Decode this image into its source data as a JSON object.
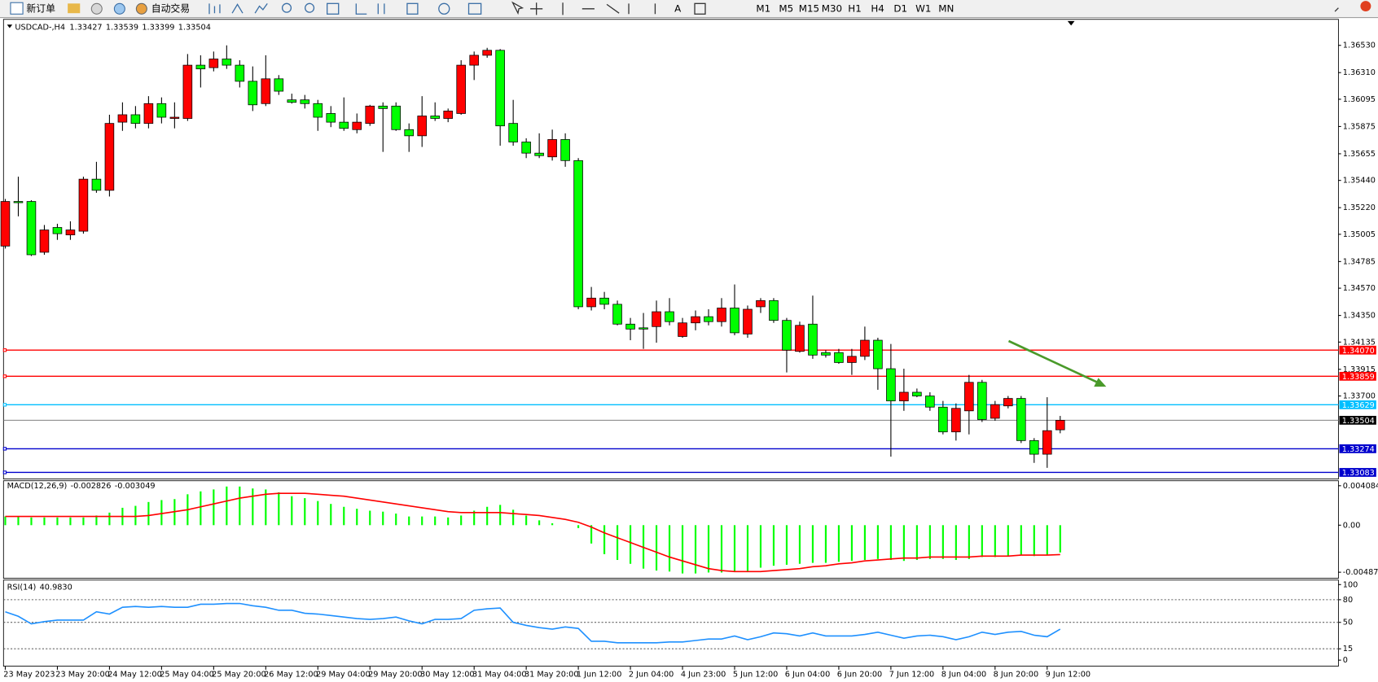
{
  "toolbar": {
    "new_order": "新订单",
    "auto_trading": "自动交易",
    "timeframes": [
      "M1",
      "M5",
      "M15",
      "M30",
      "H1",
      "H4",
      "D1",
      "W1",
      "MN"
    ]
  },
  "chart_data": [
    {
      "type": "candlestick",
      "title": "USDCAD-,H4",
      "categories": [
        "23 May 2023",
        null,
        null,
        null,
        "23 May 20:00",
        null,
        null,
        null,
        "24 May 12:00",
        null,
        null,
        null,
        "25 May 04:00",
        null,
        null,
        null,
        "25 May 20:00",
        null,
        null,
        null,
        "26 May 12:00",
        null,
        null,
        null,
        "29 May 04:00",
        null,
        null,
        null,
        "29 May 20:00",
        null,
        null,
        null,
        "30 May 12:00",
        null,
        null,
        null,
        "31 May 04:00",
        null,
        null,
        null,
        "31 May 20:00",
        null,
        null,
        null,
        "1 Jun 12:00",
        null,
        null,
        null,
        "2 Jun 04:00",
        null,
        null,
        null,
        "4 Jun 23:00",
        null,
        null,
        null,
        "5 Jun 12:00",
        null,
        null,
        null,
        "6 Jun 04:00",
        null,
        null,
        null,
        "6 Jun 20:00",
        null,
        null,
        null,
        "7 Jun 12:00",
        null,
        null,
        null,
        "8 Jun 04:00",
        null,
        null,
        null,
        "8 Jun 20:00",
        null,
        null,
        null,
        "9 Jun 12:00",
        null
      ],
      "candles": [
        [
          1.3491,
          1.3529,
          1.3489,
          1.3527
        ],
        [
          1.3527,
          1.3547,
          1.3515,
          1.3526
        ],
        [
          1.3527,
          1.3528,
          1.3483,
          1.3484
        ],
        [
          1.3486,
          1.3508,
          1.3484,
          1.3504
        ],
        [
          1.3506,
          1.3509,
          1.3496,
          1.3501
        ],
        [
          1.35,
          1.3511,
          1.3496,
          1.3504
        ],
        [
          1.3503,
          1.3547,
          1.3501,
          1.3545
        ],
        [
          1.3545,
          1.3559,
          1.3534,
          1.3536
        ],
        [
          1.3536,
          1.3597,
          1.3531,
          1.359
        ],
        [
          1.3591,
          1.3607,
          1.3584,
          1.3597
        ],
        [
          1.3597,
          1.3604,
          1.3586,
          1.359
        ],
        [
          1.359,
          1.3612,
          1.3586,
          1.3606
        ],
        [
          1.3606,
          1.3611,
          1.359,
          1.3595
        ],
        [
          1.3594,
          1.3607,
          1.3586,
          1.3595
        ],
        [
          1.3594,
          1.3646,
          1.3592,
          1.3637
        ],
        [
          1.3637,
          1.3645,
          1.3619,
          1.3634
        ],
        [
          1.3635,
          1.3648,
          1.3632,
          1.3642
        ],
        [
          1.3642,
          1.3653,
          1.3634,
          1.3637
        ],
        [
          1.3637,
          1.3641,
          1.3619,
          1.3624
        ],
        [
          1.3624,
          1.3636,
          1.36,
          1.3605
        ],
        [
          1.3606,
          1.3645,
          1.3604,
          1.3626
        ],
        [
          1.3626,
          1.3629,
          1.3613,
          1.3616
        ],
        [
          1.3609,
          1.3614,
          1.3606,
          1.3607
        ],
        [
          1.3609,
          1.3613,
          1.3602,
          1.3606
        ],
        [
          1.3606,
          1.3609,
          1.3584,
          1.3595
        ],
        [
          1.3598,
          1.3604,
          1.3587,
          1.3591
        ],
        [
          1.3591,
          1.3611,
          1.3584,
          1.3586
        ],
        [
          1.3585,
          1.3598,
          1.3582,
          1.3591
        ],
        [
          1.359,
          1.3605,
          1.3588,
          1.3604
        ],
        [
          1.3604,
          1.3607,
          1.3567,
          1.3602
        ],
        [
          1.3604,
          1.3607,
          1.3584,
          1.3585
        ],
        [
          1.3585,
          1.359,
          1.3567,
          1.358
        ],
        [
          1.358,
          1.3612,
          1.3571,
          1.3596
        ],
        [
          1.3596,
          1.3607,
          1.3592,
          1.3594
        ],
        [
          1.3594,
          1.3602,
          1.3591,
          1.36
        ],
        [
          1.3598,
          1.3641,
          1.3597,
          1.3637
        ],
        [
          1.3637,
          1.3648,
          1.3625,
          1.3645
        ],
        [
          1.3645,
          1.3651,
          1.3643,
          1.3649
        ],
        [
          1.3649,
          1.365,
          1.3572,
          1.3588
        ],
        [
          1.359,
          1.3609,
          1.3572,
          1.3575
        ],
        [
          1.3575,
          1.3578,
          1.3562,
          1.3566
        ],
        [
          1.3566,
          1.3582,
          1.3562,
          1.3564
        ],
        [
          1.3563,
          1.3585,
          1.356,
          1.3577
        ],
        [
          1.3577,
          1.3582,
          1.3555,
          1.356
        ],
        [
          1.356,
          1.3562,
          1.344,
          1.3442
        ],
        [
          1.3442,
          1.3458,
          1.3439,
          1.3449
        ],
        [
          1.3449,
          1.3454,
          1.344,
          1.3444
        ],
        [
          1.3444,
          1.3447,
          1.3427,
          1.3428
        ],
        [
          1.3428,
          1.3433,
          1.3415,
          1.3424
        ],
        [
          1.3425,
          1.3437,
          1.3408,
          1.3424
        ],
        [
          1.3426,
          1.3447,
          1.3413,
          1.3438
        ],
        [
          1.3438,
          1.3449,
          1.3427,
          1.343
        ],
        [
          1.3418,
          1.3433,
          1.3417,
          1.3429
        ],
        [
          1.3429,
          1.3439,
          1.3423,
          1.3434
        ],
        [
          1.3434,
          1.344,
          1.3427,
          1.343
        ],
        [
          1.343,
          1.3449,
          1.3426,
          1.3441
        ],
        [
          1.3441,
          1.346,
          1.3419,
          1.3421
        ],
        [
          1.342,
          1.3443,
          1.3417,
          1.344
        ],
        [
          1.3442,
          1.3449,
          1.3437,
          1.3447
        ],
        [
          1.3447,
          1.3449,
          1.3429,
          1.3431
        ],
        [
          1.3431,
          1.3433,
          1.3389,
          1.3407
        ],
        [
          1.3406,
          1.343,
          1.3405,
          1.3427
        ],
        [
          1.3428,
          1.3451,
          1.34,
          1.3403
        ],
        [
          1.3405,
          1.3407,
          1.3401,
          1.3403
        ],
        [
          1.3405,
          1.3408,
          1.3396,
          1.3397
        ],
        [
          1.3397,
          1.3408,
          1.3387,
          1.3402
        ],
        [
          1.3402,
          1.3426,
          1.3399,
          1.3415
        ],
        [
          1.3415,
          1.3417,
          1.3375,
          1.3392
        ],
        [
          1.3392,
          1.3412,
          1.3321,
          1.3366
        ],
        [
          1.3366,
          1.3392,
          1.3358,
          1.3373
        ],
        [
          1.3373,
          1.3376,
          1.3369,
          1.337
        ],
        [
          1.337,
          1.3373,
          1.3358,
          1.3361
        ],
        [
          1.3361,
          1.3366,
          1.3339,
          1.3341
        ],
        [
          1.3341,
          1.3364,
          1.3334,
          1.336
        ],
        [
          1.3358,
          1.3387,
          1.3339,
          1.3381
        ],
        [
          1.3381,
          1.3383,
          1.3349,
          1.3351
        ],
        [
          1.3352,
          1.3366,
          1.335,
          1.3363
        ],
        [
          1.3362,
          1.337,
          1.336,
          1.3368
        ],
        [
          1.3368,
          1.337,
          1.3332,
          1.3334
        ],
        [
          1.3334,
          1.3336,
          1.3316,
          1.3323
        ],
        [
          1.3323,
          1.3369,
          1.3312,
          1.3342
        ],
        [
          1.33427,
          1.33539,
          1.33399,
          1.33504
        ]
      ],
      "up_color": "#ff0000",
      "down_color": "#00ff00",
      "ylim": [
        1.3303,
        1.3674
      ],
      "yticks": [
        {
          "value": 1.3653,
          "label": "1.36530"
        },
        {
          "value": 1.3631,
          "label": "1.36310"
        },
        1.36095,
        1.35875,
        1.35655,
        {
          "value": 1.3544,
          "label": "1.35440"
        },
        {
          "value": 1.3522,
          "label": "1.35220"
        },
        1.35005,
        1.34785,
        {
          "value": 1.3457,
          "label": "1.34570"
        },
        {
          "value": 1.3435,
          "label": "1.34350"
        },
        1.34135,
        1.33915,
        {
          "value": 1.337,
          "label": "1.33700"
        }
      ],
      "levels": [
        {
          "value": 1.3407,
          "label": "1.34070",
          "color": "#ff0000"
        },
        {
          "value": 1.33859,
          "color": "#ff0000"
        },
        {
          "value": 1.33629,
          "color": "#00bfff"
        },
        {
          "value": 1.33274,
          "color": "#0000cd"
        },
        {
          "value": 1.33083,
          "color": "#0000cd"
        }
      ]
    },
    {
      "type": "macd",
      "title": "MACD(12,26,9)",
      "series": [
        {
          "style": "histogram",
          "color": "#00ff00",
          "values": [
            0.0009,
            0.0009,
            0.0008,
            0.0008,
            0.0008,
            0.0008,
            0.0008,
            0.001,
            0.0013,
            0.0018,
            0.002,
            0.0024,
            0.0026,
            0.0027,
            0.0032,
            0.0035,
            0.0037,
            0.004,
            0.004,
            0.0038,
            0.0037,
            0.0034,
            0.003,
            0.0028,
            0.0025,
            0.0022,
            0.0019,
            0.0017,
            0.0015,
            0.0014,
            0.0012,
            0.0009,
            0.0009,
            0.0009,
            0.0008,
            0.001,
            0.0015,
            0.0019,
            0.0021,
            0.0016,
            0.001,
            0.0005,
            0.0002,
            0,
            -0.0003,
            -0.0019,
            -0.003,
            -0.0036,
            -0.004,
            -0.0045,
            -0.0047,
            -0.0048,
            -0.005,
            -0.005,
            -0.0049,
            -0.0049,
            -0.0048,
            -0.0048,
            -0.0044,
            -0.0042,
            -0.0041,
            -0.004,
            -0.0039,
            -0.0039,
            -0.0038,
            -0.0037,
            -0.0036,
            -0.0035,
            -0.0036,
            -0.0037,
            -0.0036,
            -0.0035,
            -0.0035,
            -0.0036,
            -0.0035,
            -0.0033,
            -0.0033,
            -0.0032,
            -0.0031,
            -0.0032,
            -0.0031,
            -0.002826
          ]
        },
        {
          "color": "#ff0000",
          "values": [
            0.0009,
            0.0009,
            0.0009,
            0.0009,
            0.0009,
            0.0009,
            0.0009,
            0.0009,
            0.0009,
            0.0009,
            0.0009,
            0.001,
            0.0012,
            0.0014,
            0.0016,
            0.0019,
            0.0022,
            0.0025,
            0.0028,
            0.003,
            0.0032,
            0.0033,
            0.0033,
            0.0033,
            0.0032,
            0.0031,
            0.003,
            0.0028,
            0.0026,
            0.0024,
            0.0022,
            0.002,
            0.0018,
            0.0016,
            0.0014,
            0.0013,
            0.0013,
            0.0013,
            0.0013,
            0.0012,
            0.0011,
            0.001,
            0.0008,
            0.0006,
            0.0003,
            -0.0002,
            -0.0008,
            -0.0013,
            -0.0018,
            -0.0023,
            -0.0028,
            -0.0033,
            -0.0037,
            -0.0041,
            -0.0045,
            -0.0047,
            -0.0048,
            -0.0048,
            -0.0048,
            -0.0047,
            -0.0046,
            -0.0045,
            -0.0043,
            -0.0042,
            -0.004,
            -0.0039,
            -0.0037,
            -0.0036,
            -0.0035,
            -0.0034,
            -0.0034,
            -0.0033,
            -0.0033,
            -0.0033,
            -0.0033,
            -0.0032,
            -0.0032,
            -0.0032,
            -0.0031,
            -0.0031,
            -0.0031,
            -0.003049
          ]
        }
      ],
      "ylim": [
        -0.0055,
        0.0046
      ],
      "yticks": [
        0.004084,
        {
          "value": 0,
          "label": "0.00"
        },
        -0.004872
      ]
    },
    {
      "type": "line",
      "title": "RSI(14)",
      "color": "#1e90ff",
      "values": [
        64,
        58,
        48,
        51,
        53,
        53,
        53,
        64,
        61,
        70,
        71,
        70,
        71,
        70,
        70,
        74,
        74,
        75,
        75,
        72,
        70,
        66,
        66,
        62,
        61,
        59,
        57,
        55,
        54,
        55,
        57,
        52,
        48,
        54,
        54,
        55,
        66,
        68,
        69,
        50,
        46,
        43,
        41,
        44,
        42,
        25,
        25,
        23,
        23,
        23,
        23,
        24,
        24,
        26,
        28,
        28,
        32,
        27,
        31,
        36,
        35,
        32,
        36,
        32,
        32,
        32,
        34,
        37,
        33,
        29,
        32,
        33,
        31,
        27,
        31,
        37,
        34,
        37,
        38,
        33,
        31,
        40.983
      ],
      "value_labels": [
        null,
        null,
        null,
        null,
        null,
        null,
        null,
        null,
        null,
        null,
        null,
        null,
        null,
        null,
        null,
        null,
        null,
        null,
        null,
        null,
        null,
        null,
        null,
        null,
        null,
        null,
        null,
        null,
        null,
        null,
        null,
        null,
        null,
        null,
        null,
        null,
        null,
        null,
        null,
        null,
        null,
        null,
        null,
        null,
        null,
        null,
        null,
        null,
        null,
        null,
        null,
        null,
        null,
        null,
        null,
        null,
        null,
        null,
        null,
        null,
        null,
        null,
        null,
        null,
        null,
        null,
        null,
        null,
        null,
        null,
        null,
        null,
        null,
        null,
        null,
        null,
        null,
        null,
        null,
        null,
        null,
        "40.9830"
      ],
      "ylim": [
        -8,
        106
      ],
      "yticks": [
        100,
        80,
        50,
        15,
        0
      ],
      "levels": [
        80,
        50,
        15
      ]
    }
  ]
}
